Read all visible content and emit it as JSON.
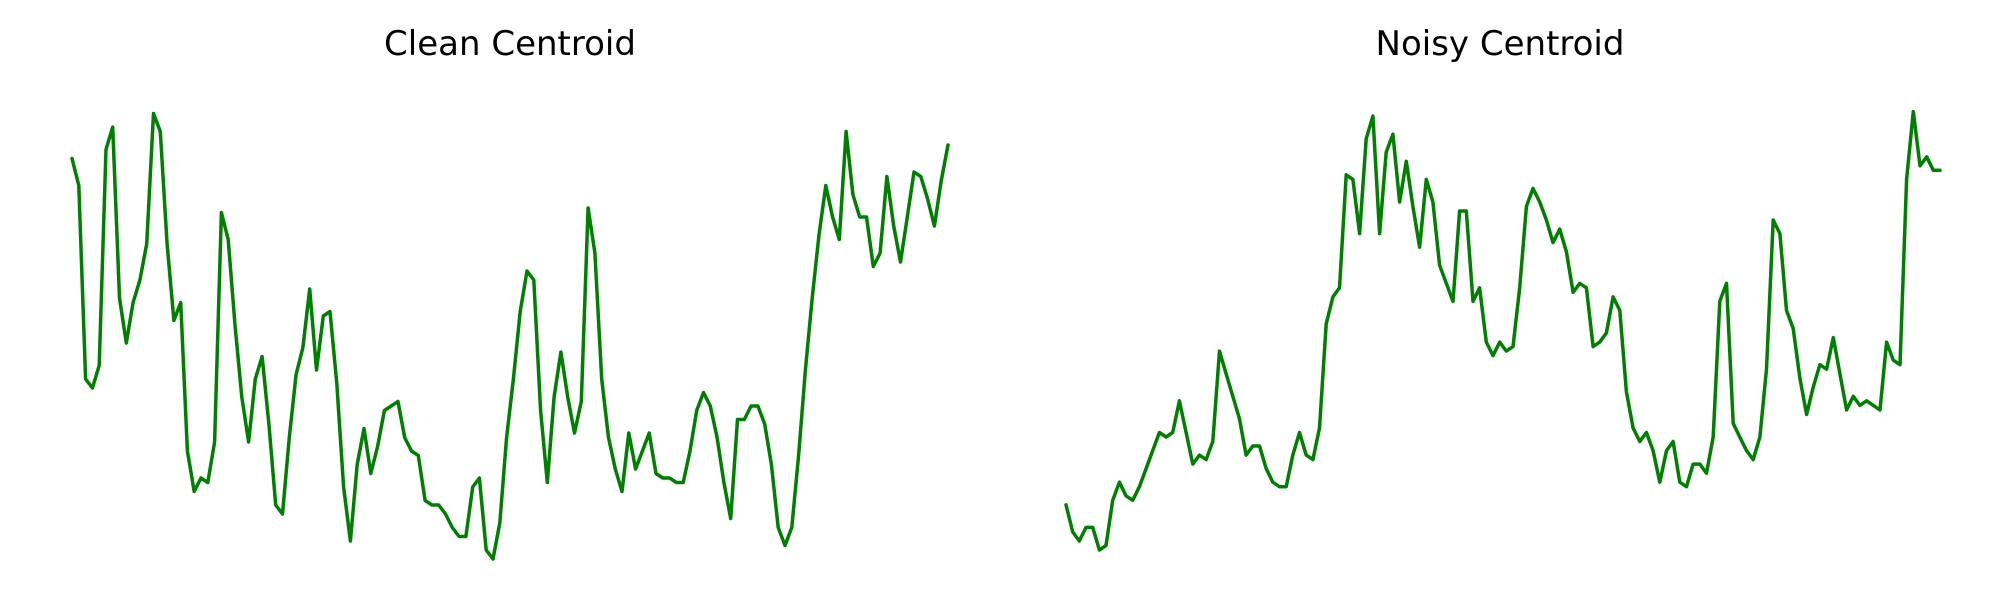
{
  "chart_data": [
    {
      "type": "line",
      "title": "Clean Centroid",
      "axis": "off",
      "grid": false,
      "xlim": [
        0,
        129
      ],
      "ylim": [
        0,
        1
      ],
      "series": [
        {
          "color": "#008000",
          "values": [
            0.87,
            0.81,
            0.38,
            0.36,
            0.41,
            0.89,
            0.94,
            0.56,
            0.46,
            0.55,
            0.6,
            0.68,
            0.97,
            0.93,
            0.68,
            0.51,
            0.55,
            0.22,
            0.13,
            0.16,
            0.15,
            0.24,
            0.75,
            0.69,
            0.5,
            0.34,
            0.24,
            0.38,
            0.43,
            0.28,
            0.1,
            0.08,
            0.25,
            0.39,
            0.45,
            0.58,
            0.4,
            0.52,
            0.53,
            0.37,
            0.14,
            0.02,
            0.19,
            0.27,
            0.17,
            0.23,
            0.31,
            0.32,
            0.33,
            0.25,
            0.22,
            0.21,
            0.11,
            0.1,
            0.1,
            0.08,
            0.05,
            0.03,
            0.03,
            0.14,
            0.16,
            0.0,
            -0.02,
            0.06,
            0.25,
            0.38,
            0.53,
            0.62,
            0.6,
            0.31,
            0.15,
            0.34,
            0.44,
            0.34,
            0.26,
            0.33,
            0.76,
            0.66,
            0.38,
            0.25,
            0.18,
            0.13,
            0.26,
            0.18,
            0.22,
            0.26,
            0.17,
            0.16,
            0.16,
            0.15,
            0.15,
            0.22,
            0.31,
            0.35,
            0.32,
            0.25,
            0.15,
            0.07,
            0.29,
            0.29,
            0.32,
            0.32,
            0.28,
            0.19,
            0.05,
            0.01,
            0.05,
            0.21,
            0.4,
            0.56,
            0.7,
            0.81,
            0.74,
            0.69,
            0.93,
            0.79,
            0.74,
            0.74,
            0.63,
            0.66,
            0.83,
            0.72,
            0.64,
            0.74,
            0.84,
            0.83,
            0.78,
            0.72,
            0.82,
            0.9
          ]
        }
      ]
    },
    {
      "type": "line",
      "title": "Noisy Centroid",
      "axis": "off",
      "grid": false,
      "xlim": [
        0,
        129
      ],
      "ylim": [
        0,
        1
      ],
      "series": [
        {
          "color": "#008000",
          "values": [
            0.1,
            0.04,
            0.02,
            0.05,
            0.05,
            0.0,
            0.01,
            0.11,
            0.15,
            0.12,
            0.11,
            0.14,
            0.18,
            0.22,
            0.26,
            0.25,
            0.26,
            0.33,
            0.26,
            0.19,
            0.21,
            0.2,
            0.24,
            0.44,
            0.39,
            0.34,
            0.29,
            0.21,
            0.23,
            0.23,
            0.18,
            0.15,
            0.14,
            0.14,
            0.21,
            0.26,
            0.21,
            0.2,
            0.27,
            0.5,
            0.56,
            0.58,
            0.83,
            0.82,
            0.7,
            0.91,
            0.96,
            0.7,
            0.88,
            0.92,
            0.77,
            0.86,
            0.76,
            0.67,
            0.82,
            0.77,
            0.63,
            0.59,
            0.55,
            0.75,
            0.75,
            0.55,
            0.58,
            0.46,
            0.43,
            0.46,
            0.44,
            0.45,
            0.58,
            0.76,
            0.8,
            0.77,
            0.73,
            0.68,
            0.71,
            0.66,
            0.57,
            0.59,
            0.58,
            0.45,
            0.46,
            0.48,
            0.56,
            0.53,
            0.35,
            0.27,
            0.24,
            0.26,
            0.22,
            0.15,
            0.22,
            0.24,
            0.15,
            0.14,
            0.19,
            0.19,
            0.17,
            0.25,
            0.55,
            0.59,
            0.28,
            0.25,
            0.22,
            0.2,
            0.25,
            0.4,
            0.73,
            0.7,
            0.53,
            0.49,
            0.38,
            0.3,
            0.36,
            0.41,
            0.4,
            0.47,
            0.39,
            0.31,
            0.34,
            0.32,
            0.33,
            0.32,
            0.31,
            0.46,
            0.42,
            0.41,
            0.82,
            0.97,
            0.85,
            0.87,
            0.84,
            0.84
          ]
        }
      ]
    }
  ]
}
